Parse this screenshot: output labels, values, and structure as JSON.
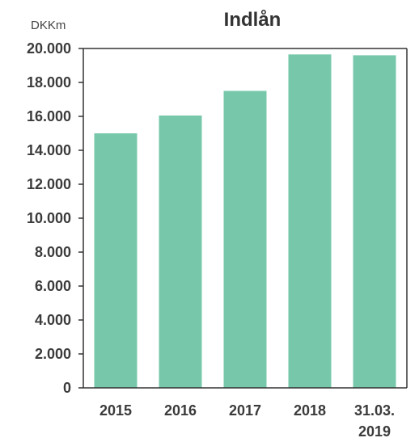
{
  "chart_data": {
    "type": "bar",
    "title": "Indlån",
    "unit_label": "DKKm",
    "categories": [
      "2015",
      "2016",
      "2017",
      "2018",
      "31.03.\n2019"
    ],
    "values": [
      15000,
      16050,
      17500,
      19650,
      19600
    ],
    "ylim": [
      0,
      20000
    ],
    "yticks": [
      {
        "value": 0,
        "label": "0"
      },
      {
        "value": 2000,
        "label": "2.000"
      },
      {
        "value": 4000,
        "label": "4.000"
      },
      {
        "value": 6000,
        "label": "6.000"
      },
      {
        "value": 8000,
        "label": "8.000"
      },
      {
        "value": 10000,
        "label": "10.000"
      },
      {
        "value": 12000,
        "label": "12.000"
      },
      {
        "value": 14000,
        "label": "14.000"
      },
      {
        "value": 16000,
        "label": "16.000"
      },
      {
        "value": 18000,
        "label": "18.000"
      },
      {
        "value": 20000,
        "label": "20.000"
      }
    ],
    "bar_color": "#77c8aa",
    "axis_color": "#333333",
    "grid": false,
    "legend": "none"
  }
}
